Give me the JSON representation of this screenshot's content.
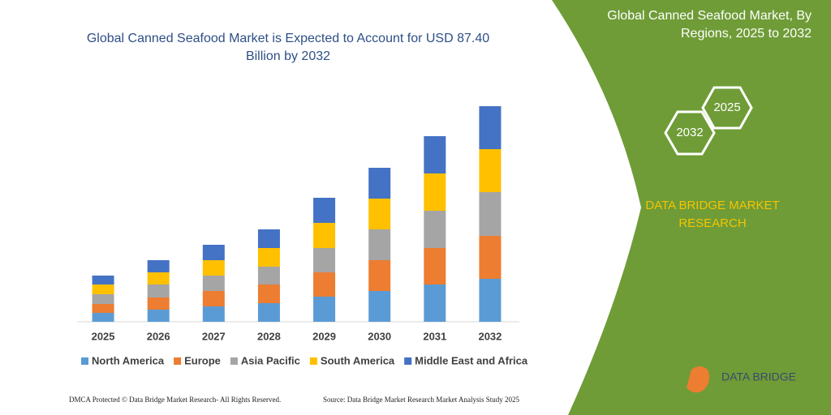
{
  "chart_data": {
    "type": "bar",
    "stacked": true,
    "title": "Global Canned Seafood Market is Expected to Account for USD 87.40 Billion by 2032",
    "categories": [
      "2025",
      "2026",
      "2027",
      "2028",
      "2029",
      "2030",
      "2031",
      "2032"
    ],
    "series": [
      {
        "name": "North America",
        "color": "#5b9bd5",
        "values": [
          11,
          15,
          19,
          23,
          31,
          38,
          46,
          53
        ]
      },
      {
        "name": "Europe",
        "color": "#ed7d31",
        "values": [
          11,
          15,
          19,
          23,
          30,
          38,
          45,
          53
        ]
      },
      {
        "name": "Asia Pacific",
        "color": "#a5a5a5",
        "values": [
          12,
          16,
          19,
          22,
          30,
          38,
          46,
          54
        ]
      },
      {
        "name": "South America",
        "color": "#ffc000",
        "values": [
          12,
          15,
          19,
          23,
          31,
          38,
          46,
          53
        ]
      },
      {
        "name": "Middle East and Africa",
        "color": "#4472c4",
        "values": [
          11,
          15,
          19,
          23,
          31,
          38,
          46,
          53
        ]
      }
    ]
  },
  "panel": {
    "title": "Global Canned Seafood Market, By Regions, 2025 to 2032",
    "hexagons": [
      "2032",
      "2025"
    ],
    "brand": "DATA BRIDGE MARKET RESEARCH"
  },
  "logo": "DATA BRIDGE",
  "footer": {
    "left": "DMCA Protected © Data Bridge Market Research- All Rights Reserved.",
    "right": "Source: Data Bridge Market Research Market Analysis Study 2025"
  }
}
